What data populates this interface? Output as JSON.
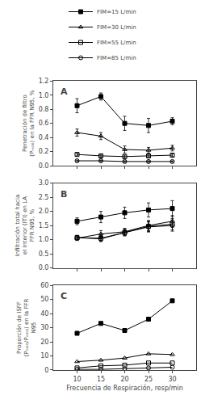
{
  "chart_data": [
    {
      "type": "line",
      "annotations": [
        "A"
      ],
      "ylabel": "Penetración de filtro (Pₘₗₜ₀) en la FFR N95, %",
      "x": [
        10,
        15,
        20,
        25,
        30
      ],
      "xlim": [
        5,
        35
      ],
      "xticks": [
        10,
        15,
        20,
        25,
        30
      ],
      "ylim": [
        0,
        1.2
      ],
      "yticks": [
        {
          "value": 0.0,
          "label": "0.0"
        },
        0.2,
        0.4,
        0.6,
        0.8,
        {
          "value": 1.0,
          "label": "1.0"
        },
        1.2
      ],
      "tick_labels": "y",
      "grid": false,
      "legend": "top",
      "series": [
        {
          "name": "FIM=15 L/min",
          "color": "black",
          "marker": "square",
          "values": [
            0.85,
            0.98,
            0.6,
            0.57,
            0.63
          ],
          "errors": [
            0.1,
            0.05,
            0.1,
            0.1,
            0.05
          ]
        },
        {
          "name": "FIM=30 L/min",
          "color": "black",
          "marker": "triangle-open",
          "values": [
            0.47,
            0.42,
            0.23,
            0.22,
            0.25
          ],
          "errors": [
            0.05,
            0.05,
            0.05,
            0.04,
            0.04
          ]
        },
        {
          "name": "FIM=55 L/min",
          "color": "black",
          "marker": "square-open",
          "values": [
            0.16,
            0.14,
            0.13,
            0.14,
            0.15
          ],
          "errors": [
            0.02,
            0.02,
            0.02,
            0.02,
            0.02
          ]
        },
        {
          "name": "FIM=85 L/min",
          "color": "black",
          "marker": "circle-open",
          "values": [
            0.07,
            0.07,
            0.06,
            0.06,
            0.06
          ],
          "errors": [
            0.01,
            0.01,
            0.01,
            0.01,
            0.01
          ]
        }
      ]
    },
    {
      "type": "line",
      "annotations": [
        "B"
      ],
      "ylabel": "Infiltración total hacia el Interior (ITI) en LA FFR N95, %",
      "x": [
        10,
        15,
        20,
        25,
        30
      ],
      "xlim": [
        5,
        35
      ],
      "xticks": [
        10,
        15,
        20,
        25,
        30
      ],
      "ylim": [
        0.0,
        3.0
      ],
      "yticks": [
        {
          "value": 0.0,
          "label": "0.0"
        },
        0.5,
        {
          "value": 1.0,
          "label": "1.0"
        },
        1.5,
        {
          "value": 2.0,
          "label": "2.0"
        },
        2.5,
        {
          "value": 3.0,
          "label": "3.0"
        }
      ],
      "tick_labels": "y",
      "grid": false,
      "series": [
        {
          "color": "black",
          "marker": "square",
          "values": [
            1.65,
            1.8,
            1.95,
            2.05,
            2.1
          ],
          "errors": [
            0.12,
            0.2,
            0.2,
            0.25,
            0.28
          ]
        },
        {
          "color": "black",
          "marker": "triangle-open",
          "values": [
            1.05,
            1.2,
            1.28,
            1.5,
            1.65
          ],
          "errors": [
            0.08,
            0.12,
            0.12,
            0.18,
            0.2
          ]
        },
        {
          "color": "black",
          "marker": "square-open",
          "values": [
            1.07,
            1.05,
            1.25,
            1.47,
            1.55
          ],
          "errors": [
            0.08,
            0.1,
            0.1,
            0.18,
            0.2
          ]
        },
        {
          "color": "black",
          "marker": "circle-open",
          "values": [
            1.07,
            1.03,
            1.25,
            1.45,
            1.5
          ],
          "errors": [
            0.08,
            0.1,
            0.12,
            0.18,
            0.2
          ]
        }
      ]
    },
    {
      "type": "line",
      "annotations": [
        "C"
      ],
      "ylabel": "Proporción de ISFF (Pₘₗₜ₀/Pₘₗₜ₀) en la FFR N95",
      "xlabel": "Frecuencia de Respiración, resp/min",
      "x": [
        10,
        15,
        20,
        25,
        30
      ],
      "xlim": [
        5,
        35
      ],
      "xticks": [
        10,
        15,
        20,
        25,
        30
      ],
      "ylim": [
        0,
        60
      ],
      "yticks": [
        0,
        10,
        20,
        30,
        40,
        50,
        60
      ],
      "grid": false,
      "series": [
        {
          "color": "black",
          "marker": "square",
          "values": [
            26.0,
            33.0,
            28.0,
            36.0,
            49.0
          ]
        },
        {
          "color": "black",
          "marker": "triangle-open",
          "values": [
            6.0,
            7.0,
            8.5,
            11.5,
            11.0
          ]
        },
        {
          "color": "black",
          "marker": "square-open",
          "values": [
            1.5,
            3.0,
            3.5,
            5.0,
            5.0
          ]
        },
        {
          "color": "black",
          "marker": "circle-open",
          "values": [
            0.5,
            0.5,
            1.0,
            1.5,
            2.0
          ]
        }
      ]
    }
  ]
}
